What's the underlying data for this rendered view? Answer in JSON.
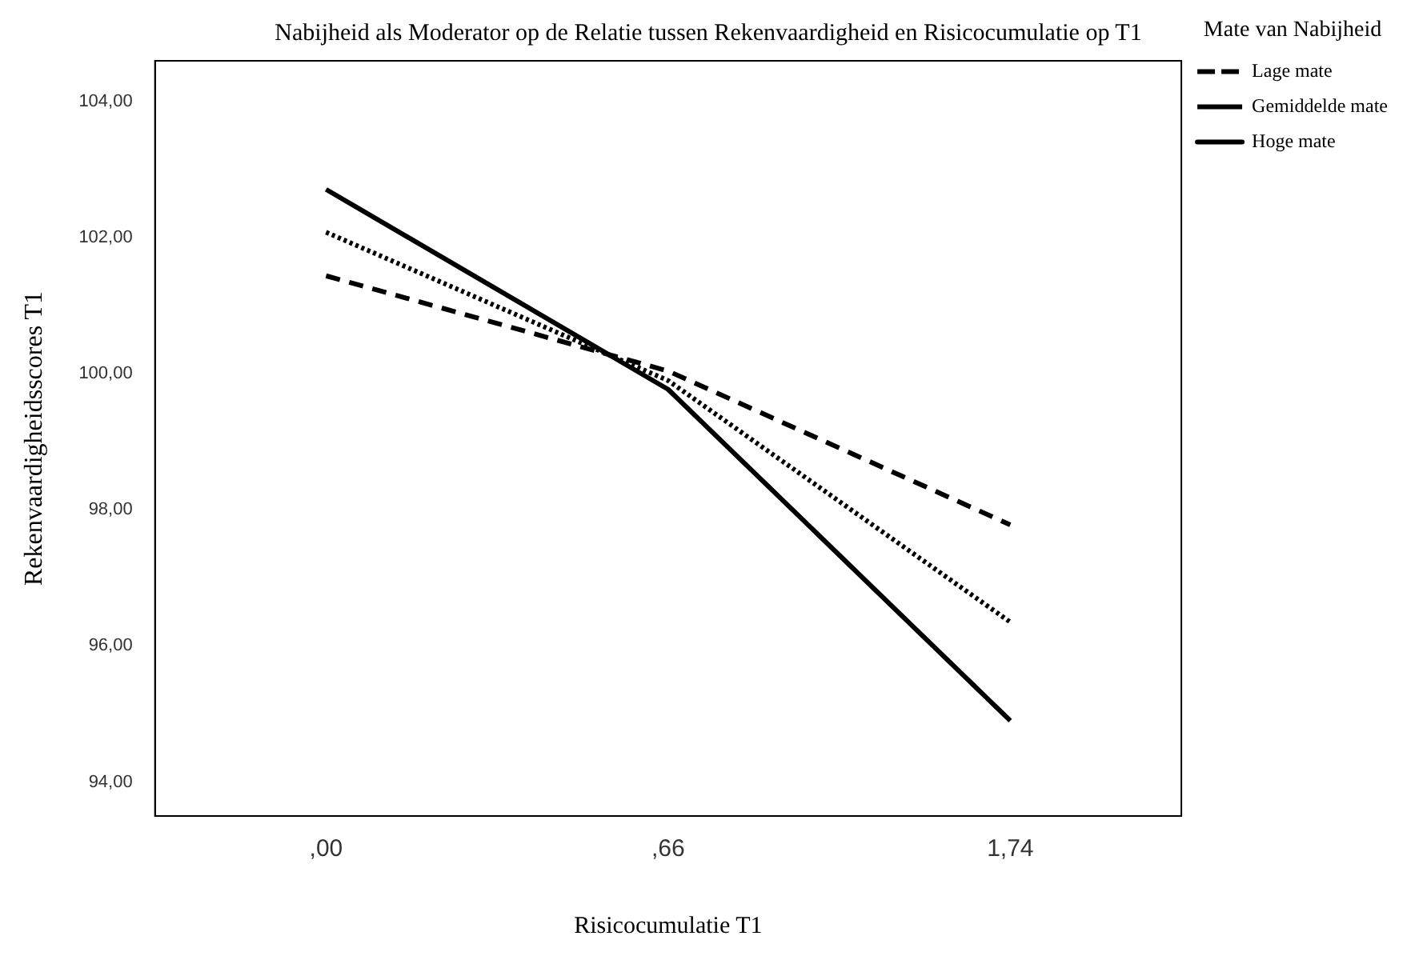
{
  "chart_data": {
    "type": "line",
    "title": "Nabijheid als Moderator op de Relatie tussen Rekenvaardigheid en Risicocumulatie op T1",
    "xlabel": "Risicocumulatie T1",
    "ylabel": "Rekenvaardigheidsscores T1",
    "legend_title": "Mate van Nabijheid",
    "categories": [
      ",00",
      ",66",
      "1,74"
    ],
    "series": [
      {
        "name": "Lage mate",
        "color": "#000000",
        "line_style": "dashed",
        "values": [
          101.44,
          100.04,
          97.78
        ]
      },
      {
        "name": "Gemiddelde mate",
        "color": "#000000",
        "line_style": "dotted",
        "values": [
          102.08,
          99.9,
          96.35
        ]
      },
      {
        "name": "Hoge mate",
        "color": "#000000",
        "line_style": "solid",
        "values": [
          102.71,
          99.77,
          94.9
        ]
      }
    ],
    "ylim": [
      93.5,
      104.6
    ],
    "yticks": [
      {
        "value": 94,
        "label": "94,00"
      },
      {
        "value": 96,
        "label": "96,00"
      },
      {
        "value": 98,
        "label": "98,00"
      },
      {
        "value": 100,
        "label": "100,00"
      },
      {
        "value": 102,
        "label": "102,00"
      },
      {
        "value": 104,
        "label": "104,00"
      }
    ],
    "grid": false,
    "legend": "right",
    "marker": "none"
  }
}
